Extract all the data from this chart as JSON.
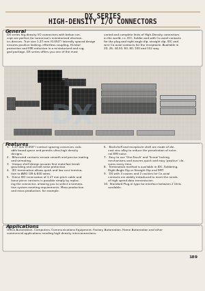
{
  "title_line1": "DX SERIES",
  "title_line2": "HIGH-DENSITY I/O CONNECTORS",
  "page_bg": "#f0ece4",
  "section_general": "General",
  "general_text_left": "DX series hig-density I/O connectors with below con-\ncept are perfect for tomorrow's miniaturized electron-\nics devices. True size 1.27 mm (0.050\") laterally spaced design\nensures positive looking, effortless coupling, Hi-total\nprotection and EMI reduction in a miniaturized and rug-\nged package. DX series offers you one of the most",
  "general_text_right": "varied and complete lines of High-Density connectors\nin the world, i.e. IDC, Solder and with Co-axial contacts\nfor the plug and right angle dip, straight dip, IDC and\nwire Co-axial contacts for the receptacle. Available in\n20, 26, 34,50, 60, 80, 100 and 152 way.",
  "section_features": "Features",
  "features_left": "1.   1.27 mm (0.050\") contact spacing conserves valu-\n     able board space and permits ultra-high density\n     designs.\n2.   Bifurcated contacts ensure smooth and precise mating\n     and unmating.\n3.   Unique shell design assures first mate/last break\n     grounding and overall noise protection.\n4.   IDC termination allows quick and low cost termina-\n     tion to AWG (28 & B30 wires.\n5.   Direct IDC termination of 1.27 mm pitch cable and\n     loose piece contacts is possible simply by replac-\n     ing the connector, allowing you to select a termina-\n     tion system meeting requirements. Mass production\n     and mass production, for example.",
  "features_right": "6.   Backshell and receptacle shell are made of die-\n     cast zinc alloy to reduce the penetration of exter-\n     nal EMI noise.\n7.   Easy to use 'One-Touch' and 'Screw' locking\n     mechanisms and assures quick and easy 'positive' clo-\n     sures every time.\n8.   Termination method is available in IDC, Soldering,\n     Right Angle Dip or Straight Dip and SMT.\n9.   DX with 3 coaxes and 2 cavities for Co-axial\n     contacts are widely introduced to meet the needs\n     of high speed data transmission.\n10.  Standard Plug-in type for interface between 2 Units\n     available.",
  "section_applications": "Applications",
  "applications_text": "Office Automation, Computers, Communications Equipment, Factory Automation, Home Automation and other\ncommercial applications needing high density interconnections.",
  "page_number": "189",
  "title_color": "#1a1a1a",
  "header_line_color": "#b8a070",
  "section_line_color": "#888888",
  "box_edge_color": "#888888",
  "box_face_color": "#f5f2ec",
  "text_color": "#222222"
}
